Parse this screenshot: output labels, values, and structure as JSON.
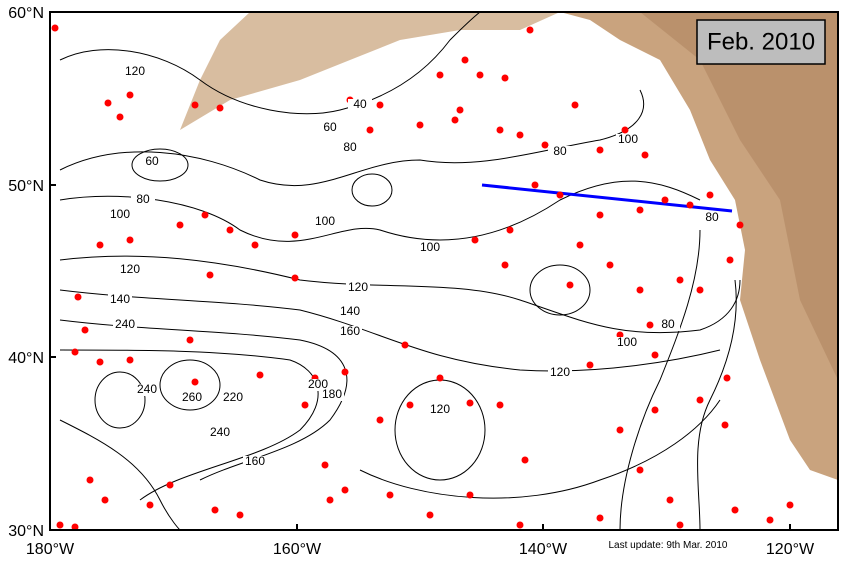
{
  "title": "Feb. 2010",
  "update_note": "Last update: 9th Mar. 2010",
  "lat_labels": [
    "60°N",
    "50°N",
    "40°N",
    "30°N"
  ],
  "lon_labels": [
    "180°W",
    "160°W",
    "140°W",
    "120°W"
  ],
  "contour_labels": [
    "120",
    "40",
    "60",
    "80",
    "60",
    "80",
    "100",
    "100",
    "100",
    "120",
    "120",
    "140",
    "160",
    "80",
    "100",
    "80",
    "80",
    "100",
    "120",
    "120",
    "240",
    "260",
    "220",
    "200",
    "180",
    "240",
    "160",
    "140",
    "240"
  ]
}
